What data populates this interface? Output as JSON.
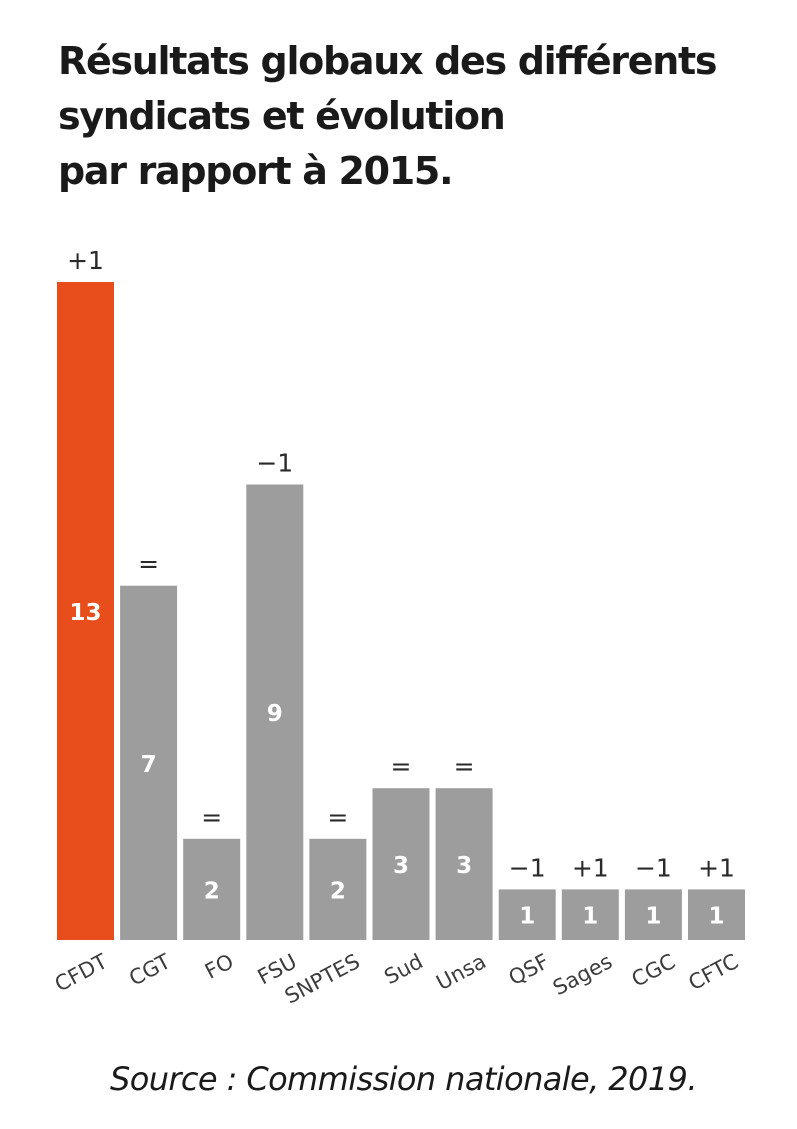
{
  "title_lines": [
    "Résultats globaux des différents",
    "syndicats et évolution",
    "par rapport à 2015."
  ],
  "source": "Source : Commission nationale, 2019.",
  "colors": {
    "highlight": "#e84e1b",
    "bar": "#9d9d9d",
    "value_text": "#ffffff",
    "label_text": "#3c3c3c"
  },
  "chart_data": {
    "type": "bar",
    "title": "Résultats globaux des différents syndicats et évolution par rapport à 2015.",
    "categories": [
      "CFDT",
      "CGT",
      "FO",
      "FSU",
      "SNPTES",
      "Sud",
      "Unsa",
      "QSF",
      "Sages",
      "CGC",
      "CFTC"
    ],
    "values": [
      13,
      7,
      2,
      9,
      2,
      3,
      3,
      1,
      1,
      1,
      1
    ],
    "changes": [
      "+1",
      "=",
      "=",
      "−1",
      "=",
      "=",
      "=",
      "−1",
      "+1",
      "−1",
      "+1"
    ],
    "highlight_category": "CFDT",
    "xlabel": "",
    "ylabel": "",
    "ylim": [
      0,
      13
    ],
    "grid": false,
    "legend": "none"
  }
}
